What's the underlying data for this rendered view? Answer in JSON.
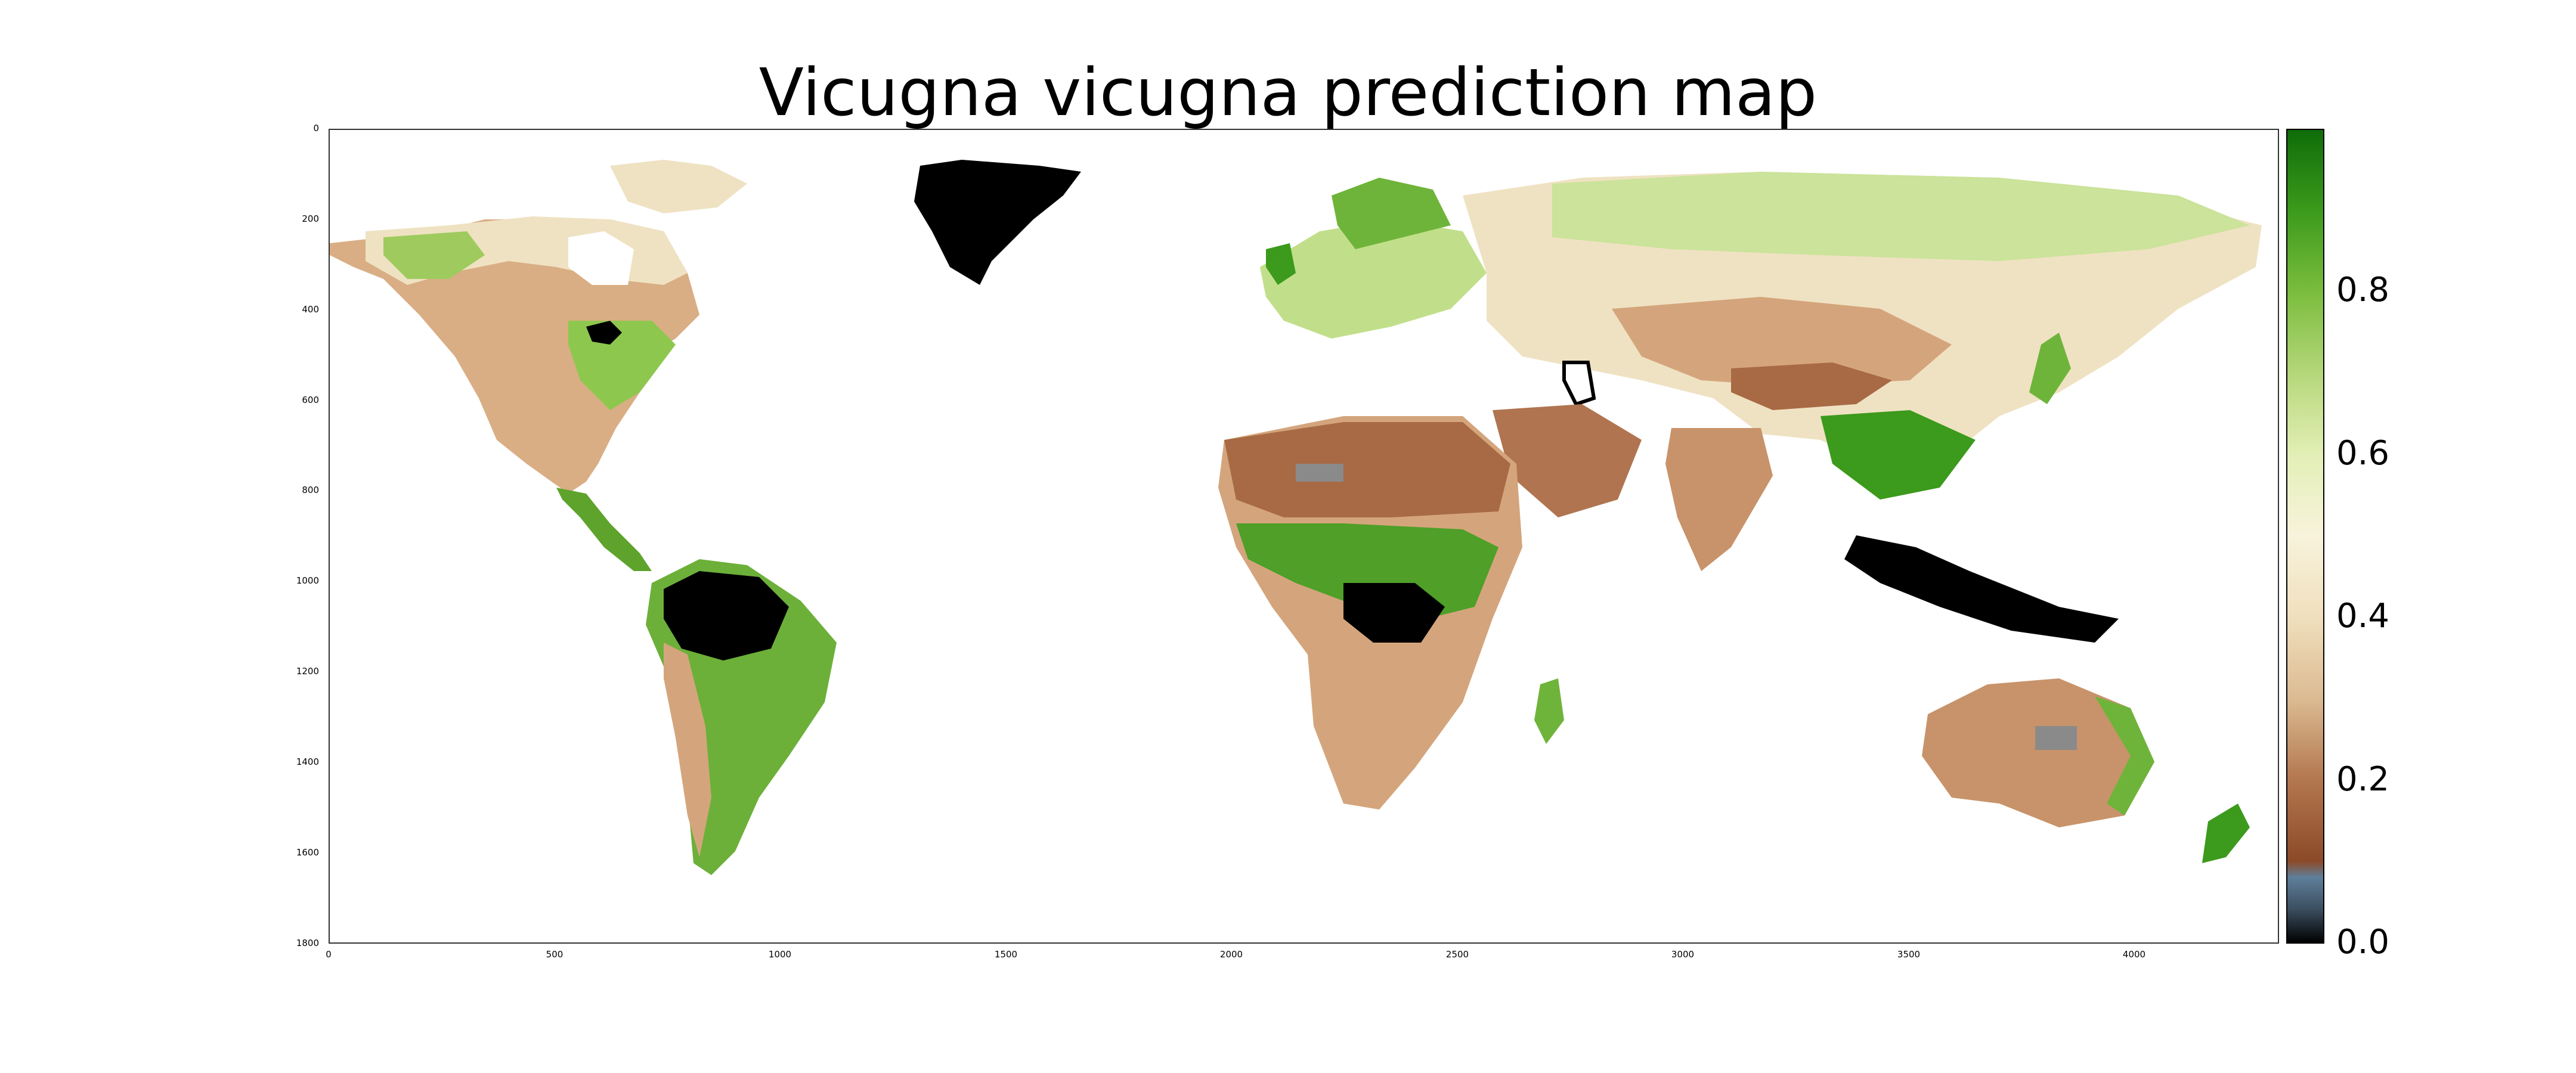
{
  "title": "Vicugna vicugna prediction map",
  "map": {
    "x_ticks": [
      "0",
      "500",
      "1000",
      "1500",
      "2000",
      "2500",
      "3000",
      "3500",
      "4000"
    ],
    "x_tick_values": [
      0,
      500,
      1000,
      1500,
      2000,
      2500,
      3000,
      3500,
      4000
    ],
    "y_ticks": [
      "0",
      "200",
      "400",
      "600",
      "800",
      "1000",
      "1200",
      "1400",
      "1600",
      "1800"
    ],
    "y_tick_values": [
      0,
      200,
      400,
      600,
      800,
      1000,
      1200,
      1400,
      1600,
      1800
    ],
    "x_range": [
      0,
      4320
    ],
    "y_range": [
      0,
      1800
    ]
  },
  "colorbar": {
    "ticks": [
      "0.0",
      "0.2",
      "0.4",
      "0.6",
      "0.8"
    ],
    "tick_values": [
      0.0,
      0.2,
      0.4,
      0.6,
      0.8
    ],
    "range": [
      0,
      1
    ],
    "stops": [
      {
        "v": 0.0,
        "c": "#000000"
      },
      {
        "v": 0.04,
        "c": "#3a4d5e"
      },
      {
        "v": 0.08,
        "c": "#5f7f9a"
      },
      {
        "v": 0.1,
        "c": "#8c4a28"
      },
      {
        "v": 0.2,
        "c": "#b3774f"
      },
      {
        "v": 0.3,
        "c": "#dcbb92"
      },
      {
        "v": 0.4,
        "c": "#f0dfbd"
      },
      {
        "v": 0.5,
        "c": "#f8f3dc"
      },
      {
        "v": 0.6,
        "c": "#e3efb6"
      },
      {
        "v": 0.7,
        "c": "#b5d77a"
      },
      {
        "v": 0.8,
        "c": "#7bbd3e"
      },
      {
        "v": 0.9,
        "c": "#3c9a1c"
      },
      {
        "v": 1.0,
        "c": "#0f6d09"
      }
    ]
  },
  "colors": {
    "black_region": "#000000",
    "desert": "#a86a44",
    "dry": "#d4a57c",
    "pale": "#efe2c2",
    "light_green": "#cbe39a",
    "green": "#6fb43a",
    "dark_green": "#2c7f13",
    "grey_patch": "#8a8a8a"
  }
}
